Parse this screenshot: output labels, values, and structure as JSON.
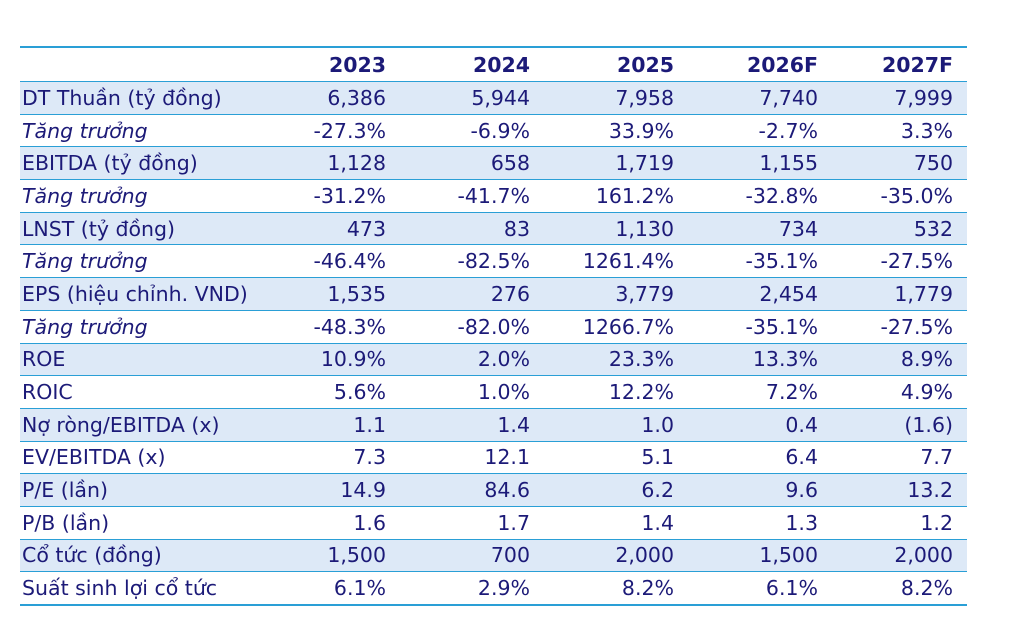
{
  "table": {
    "headers": [
      "",
      "2023",
      "2024",
      "2025",
      "2026F",
      "2027F"
    ],
    "rows": [
      {
        "label": "DT Thuần (tỷ đồng)",
        "values": [
          "6,386",
          "5,944",
          "7,958",
          "7,740",
          "7,999"
        ],
        "italic": false,
        "shaded": true
      },
      {
        "label": "Tăng trưởng",
        "values": [
          "-27.3%",
          "-6.9%",
          "33.9%",
          "-2.7%",
          "3.3%"
        ],
        "italic": true,
        "shaded": false
      },
      {
        "label": "EBITDA (tỷ đồng)",
        "values": [
          "1,128",
          "658",
          "1,719",
          "1,155",
          "750"
        ],
        "italic": false,
        "shaded": true
      },
      {
        "label": "Tăng trưởng",
        "values": [
          "-31.2%",
          "-41.7%",
          "161.2%",
          "-32.8%",
          "-35.0%"
        ],
        "italic": true,
        "shaded": false
      },
      {
        "label": "LNST (tỷ đồng)",
        "values": [
          "473",
          "83",
          "1,130",
          "734",
          "532"
        ],
        "italic": false,
        "shaded": true
      },
      {
        "label": "Tăng trưởng",
        "values": [
          "-46.4%",
          "-82.5%",
          "1261.4%",
          "-35.1%",
          "-27.5%"
        ],
        "italic": true,
        "shaded": false
      },
      {
        "label": "EPS (hiệu chỉnh. VND)",
        "values": [
          "1,535",
          "276",
          "3,779",
          "2,454",
          "1,779"
        ],
        "italic": false,
        "shaded": true
      },
      {
        "label": "Tăng trưởng",
        "values": [
          "-48.3%",
          "-82.0%",
          "1266.7%",
          "-35.1%",
          "-27.5%"
        ],
        "italic": true,
        "shaded": false
      },
      {
        "label": "ROE",
        "values": [
          "10.9%",
          "2.0%",
          "23.3%",
          "13.3%",
          "8.9%"
        ],
        "italic": false,
        "shaded": true
      },
      {
        "label": "ROIC",
        "values": [
          "5.6%",
          "1.0%",
          "12.2%",
          "7.2%",
          "4.9%"
        ],
        "italic": false,
        "shaded": false
      },
      {
        "label": "Nợ ròng/EBITDA (x)",
        "values": [
          "1.1",
          "1.4",
          "1.0",
          "0.4",
          "(1.6)"
        ],
        "italic": false,
        "shaded": true
      },
      {
        "label": "EV/EBITDA (x)",
        "values": [
          "7.3",
          "12.1",
          "5.1",
          "6.4",
          "7.7"
        ],
        "italic": false,
        "shaded": false
      },
      {
        "label": "P/E (lần)",
        "values": [
          "14.9",
          "84.6",
          "6.2",
          "9.6",
          "13.2"
        ],
        "italic": false,
        "shaded": true
      },
      {
        "label": "P/B (lần)",
        "values": [
          "1.6",
          "1.7",
          "1.4",
          "1.3",
          "1.2"
        ],
        "italic": false,
        "shaded": false
      },
      {
        "label": "Cổ tức (đồng)",
        "values": [
          "1,500",
          "700",
          "2,000",
          "1,500",
          "2,000"
        ],
        "italic": false,
        "shaded": true
      },
      {
        "label": "Suất sinh lợi cổ tức",
        "values": [
          "6.1%",
          "2.9%",
          "8.2%",
          "6.1%",
          "8.2%"
        ],
        "italic": false,
        "shaded": false
      }
    ]
  },
  "colors": {
    "text": "#1c1a78",
    "rule": "#2a9fd6",
    "shade": "#dde9f7"
  }
}
